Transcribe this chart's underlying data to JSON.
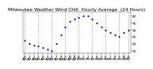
{
  "title": "Milwaukee Weather Wind Chill  Hourly Average  (24 Hours)",
  "hours": [
    0,
    1,
    2,
    3,
    4,
    5,
    6,
    7,
    8,
    9,
    10,
    11,
    12,
    13,
    14,
    15,
    16,
    17,
    18,
    19,
    20,
    21,
    22,
    23
  ],
  "wind_chill": [
    22,
    20,
    19,
    18,
    17,
    16,
    15,
    20,
    26,
    32,
    36,
    38,
    39,
    40,
    40,
    38,
    35,
    32,
    30,
    28,
    26,
    25,
    28,
    30
  ],
  "dot_color": "#0000ee",
  "bg_color": "#ffffff",
  "grid_color": "#999999",
  "ylim": [
    13,
    43
  ],
  "xlim": [
    -0.5,
    23.5
  ],
  "yticks": [
    15,
    20,
    25,
    30,
    35,
    40
  ],
  "ytick_labels": [
    "15",
    "20",
    "25",
    "30",
    "35",
    "40"
  ],
  "title_fontsize": 4.2,
  "tick_fontsize": 3.0,
  "dot_size": 2.5,
  "grid_positions": [
    0,
    3,
    6,
    9,
    12,
    15,
    18,
    21,
    23
  ]
}
